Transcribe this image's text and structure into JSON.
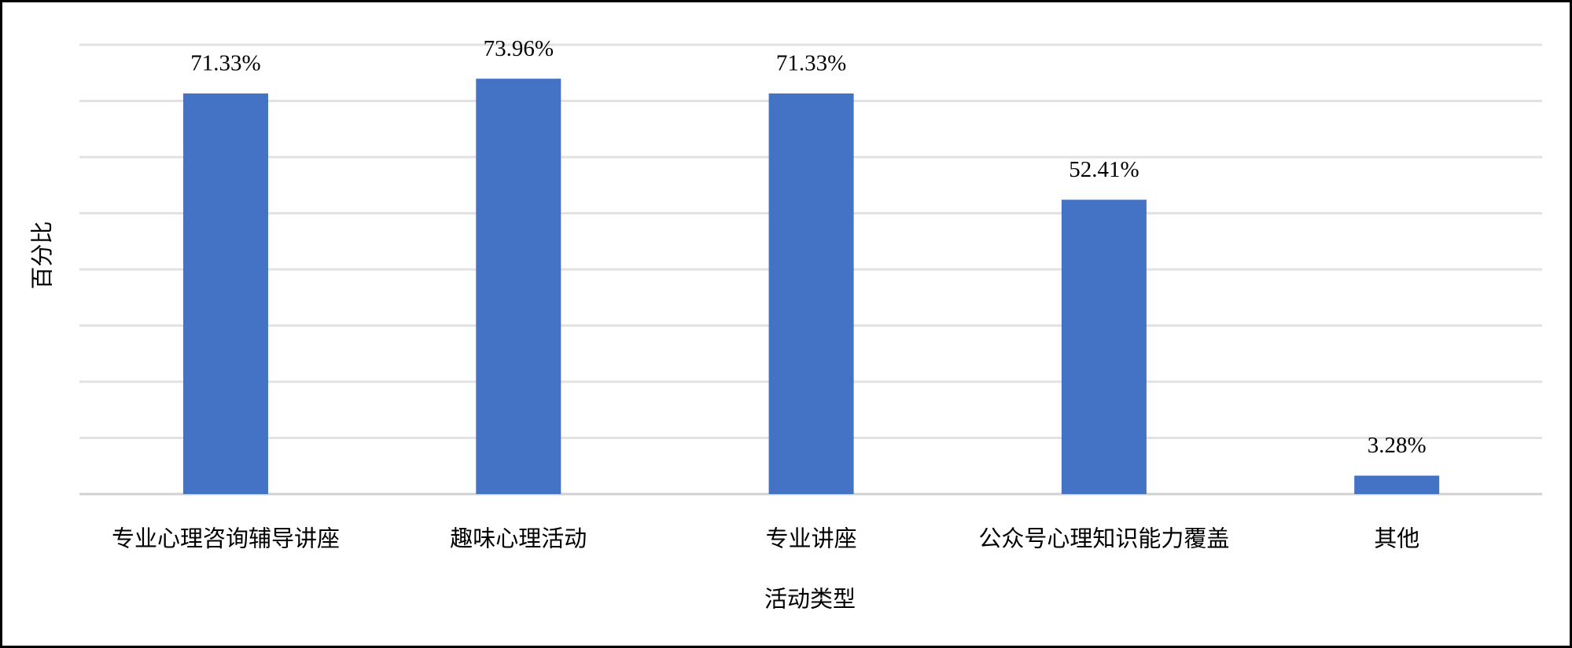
{
  "chart_data": {
    "type": "bar",
    "x_label": "活动类型",
    "y_label": "百分比",
    "categories": [
      "专业心理咨询辅导讲座",
      "趣味心理活动",
      "专业讲座",
      "公众号心理知识能力覆盖",
      "其他"
    ],
    "values": [
      71.33,
      73.96,
      71.33,
      52.41,
      3.28
    ],
    "value_labels": [
      "71.33%",
      "73.96%",
      "71.33%",
      "52.41%",
      "3.28%"
    ],
    "color": "#4472c4",
    "ylim": [
      0,
      80
    ],
    "yticks": [
      0,
      10,
      20,
      30,
      40,
      50,
      60,
      70,
      80
    ],
    "grid": true
  }
}
